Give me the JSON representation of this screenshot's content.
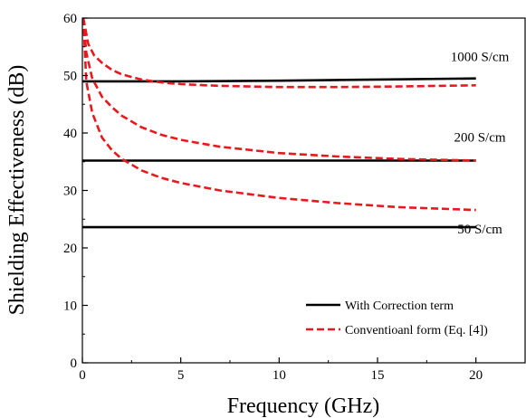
{
  "chart_data": {
    "type": "line",
    "title": "",
    "xlabel": "Frequency (GHz)",
    "ylabel": "Shielding Effectiveness (dB)",
    "xlim": [
      0,
      22.5
    ],
    "ylim": [
      0,
      60
    ],
    "xticks": [
      0,
      5,
      10,
      15,
      20
    ],
    "yticks": [
      0,
      10,
      20,
      30,
      40,
      50,
      60
    ],
    "grid": false,
    "legend_position": "lower-right",
    "colors": {
      "correction": "#000000",
      "conventional": "#e8191c"
    },
    "legend": [
      {
        "label": "With Correction term",
        "style": "solid",
        "color": "#000000"
      },
      {
        "label": "Conventioanl form (Eq. [4])",
        "style": "dashed",
        "color": "#e8191c"
      }
    ],
    "annotations": [
      {
        "text": "1000 S/cm",
        "x": 20.2,
        "y": 52.5
      },
      {
        "text": "200 S/cm",
        "x": 20.2,
        "y": 38.5
      },
      {
        "text": "50 S/cm",
        "x": 20.2,
        "y": 22.5
      }
    ],
    "series": [
      {
        "group": "correction",
        "style": "solid",
        "x": [
          0,
          5,
          10,
          15,
          20
        ],
        "y": [
          49.0,
          49.0,
          49.1,
          49.3,
          49.5
        ]
      },
      {
        "group": "correction",
        "style": "solid",
        "x": [
          0,
          5,
          10,
          15,
          20
        ],
        "y": [
          35.2,
          35.2,
          35.2,
          35.2,
          35.2
        ]
      },
      {
        "group": "correction",
        "style": "solid",
        "x": [
          0,
          5,
          10,
          15,
          20
        ],
        "y": [
          23.6,
          23.6,
          23.6,
          23.6,
          23.6
        ]
      },
      {
        "group": "conventional",
        "style": "dashed",
        "x": [
          0.05,
          0.3,
          0.6,
          1,
          1.5,
          2,
          3,
          4,
          5,
          7,
          10,
          13,
          16,
          20
        ],
        "y": [
          60,
          55.5,
          53.5,
          52.2,
          51.0,
          50.2,
          49.3,
          48.8,
          48.5,
          48.2,
          48.0,
          48.0,
          48.1,
          48.3
        ]
      },
      {
        "group": "conventional",
        "style": "dashed",
        "x": [
          0.05,
          0.2,
          0.5,
          1,
          1.5,
          2,
          3,
          4,
          5,
          7,
          10,
          13,
          16,
          20
        ],
        "y": [
          60,
          54,
          49.5,
          46.3,
          44.5,
          43.0,
          41.0,
          39.7,
          38.8,
          37.6,
          36.5,
          35.9,
          35.5,
          35.2
        ]
      },
      {
        "group": "conventional",
        "style": "dashed",
        "x": [
          0.05,
          0.2,
          0.5,
          1,
          1.5,
          2,
          3,
          4,
          5,
          7,
          10,
          13,
          16,
          20
        ],
        "y": [
          60,
          49,
          43.5,
          39.2,
          37.0,
          35.5,
          33.5,
          32.2,
          31.3,
          30.0,
          28.7,
          27.8,
          27.1,
          26.6
        ]
      }
    ]
  }
}
